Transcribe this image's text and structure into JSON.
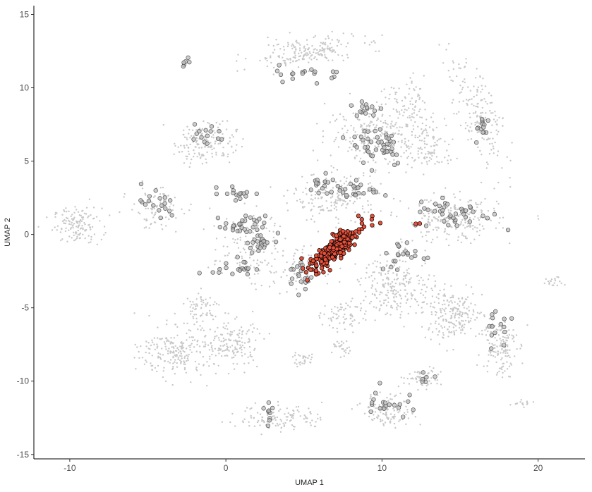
{
  "chart_data": {
    "type": "scatter",
    "title": "",
    "xlabel": "UMAP 1",
    "ylabel": "UMAP 2",
    "xlim": [
      -12.3,
      23.0
    ],
    "ylim": [
      -15.3,
      15.6
    ],
    "x_ticks": [
      -10,
      0,
      10,
      20
    ],
    "y_ticks": [
      -15,
      -10,
      -5,
      0,
      5,
      10,
      15
    ],
    "grid": false,
    "legend": "none",
    "colors": {
      "background_points": "#c8c8c8",
      "mid_points_fill": "#bdbdbd",
      "mid_points_stroke": "#555555",
      "highlight_fill": "#e8503a",
      "highlight_stroke": "#000000"
    },
    "clusters": [
      {
        "group": "background",
        "cx": -9.5,
        "cy": 0.6,
        "rx": 1.4,
        "ry": 1.1,
        "n": 140,
        "angle": 0
      },
      {
        "group": "background",
        "cx": -1.3,
        "cy": 6.3,
        "rx": 1.8,
        "ry": 1.3,
        "n": 170,
        "angle": 0
      },
      {
        "group": "background",
        "cx": 5.0,
        "cy": 12.4,
        "rx": 3.2,
        "ry": 0.9,
        "n": 200,
        "angle": 8
      },
      {
        "group": "background",
        "cx": 16.3,
        "cy": 8.0,
        "rx": 1.2,
        "ry": 3.5,
        "n": 170,
        "angle": 18
      },
      {
        "group": "background",
        "cx": 9.8,
        "cy": 6.8,
        "rx": 3.0,
        "ry": 1.8,
        "n": 260,
        "angle": 0
      },
      {
        "group": "background",
        "cx": 13.0,
        "cy": 6.0,
        "rx": 1.5,
        "ry": 1.5,
        "n": 100,
        "angle": 0
      },
      {
        "group": "background",
        "cx": 7.0,
        "cy": 2.5,
        "rx": 2.5,
        "ry": 1.5,
        "n": 180,
        "angle": 0
      },
      {
        "group": "background",
        "cx": 14.5,
        "cy": 1.0,
        "rx": 2.8,
        "ry": 1.4,
        "n": 240,
        "angle": 0
      },
      {
        "group": "background",
        "cx": 11.0,
        "cy": -3.5,
        "rx": 2.2,
        "ry": 1.8,
        "n": 230,
        "angle": 0
      },
      {
        "group": "background",
        "cx": 14.5,
        "cy": -5.5,
        "rx": 1.8,
        "ry": 1.5,
        "n": 210,
        "angle": 0
      },
      {
        "group": "background",
        "cx": 17.5,
        "cy": -7.5,
        "rx": 1.0,
        "ry": 2.0,
        "n": 140,
        "angle": 0
      },
      {
        "group": "background",
        "cx": -3.0,
        "cy": -8.0,
        "rx": 2.2,
        "ry": 1.5,
        "n": 230,
        "angle": 0
      },
      {
        "group": "background",
        "cx": 0.5,
        "cy": -7.5,
        "rx": 1.5,
        "ry": 1.5,
        "n": 140,
        "angle": 0
      },
      {
        "group": "background",
        "cx": -1.5,
        "cy": -5.0,
        "rx": 1.2,
        "ry": 1.0,
        "n": 70,
        "angle": 0
      },
      {
        "group": "background",
        "cx": -4.5,
        "cy": 1.8,
        "rx": 1.5,
        "ry": 1.3,
        "n": 90,
        "angle": 0
      },
      {
        "group": "background",
        "cx": 1.5,
        "cy": -1.0,
        "rx": 2.2,
        "ry": 2.2,
        "n": 130,
        "angle": 0
      },
      {
        "group": "background",
        "cx": 7.5,
        "cy": -5.5,
        "rx": 1.2,
        "ry": 1.0,
        "n": 70,
        "angle": 0
      },
      {
        "group": "background",
        "cx": 3.5,
        "cy": -12.5,
        "rx": 2.5,
        "ry": 0.8,
        "n": 120,
        "angle": 0
      },
      {
        "group": "background",
        "cx": 10.5,
        "cy": -12.0,
        "rx": 1.5,
        "ry": 1.0,
        "n": 120,
        "angle": 0
      },
      {
        "group": "background",
        "cx": 12.5,
        "cy": -9.8,
        "rx": 1.2,
        "ry": 0.6,
        "n": 60,
        "angle": 0
      },
      {
        "group": "background",
        "cx": 5.0,
        "cy": -8.5,
        "rx": 0.6,
        "ry": 0.5,
        "n": 30,
        "angle": 0
      },
      {
        "group": "background",
        "cx": 7.5,
        "cy": -7.8,
        "rx": 0.6,
        "ry": 0.5,
        "n": 25,
        "angle": 0
      },
      {
        "group": "background",
        "cx": 11.5,
        "cy": 9.0,
        "rx": 1.5,
        "ry": 1.5,
        "n": 70,
        "angle": 0
      },
      {
        "group": "background",
        "cx": 21.0,
        "cy": -3.2,
        "rx": 0.6,
        "ry": 0.4,
        "n": 20,
        "angle": 0
      },
      {
        "group": "background",
        "cx": 19.0,
        "cy": -11.6,
        "rx": 0.6,
        "ry": 0.3,
        "n": 15,
        "angle": 0
      },
      {
        "group": "background",
        "cx": 4.5,
        "cy": -2.5,
        "rx": 1.3,
        "ry": 1.5,
        "n": 60,
        "angle": 0
      },
      {
        "group": "mid",
        "cx": 1.2,
        "cy": 0.6,
        "rx": 1.2,
        "ry": 0.6,
        "n": 30,
        "angle": 0
      },
      {
        "group": "mid",
        "cx": 2.0,
        "cy": -0.8,
        "rx": 1.4,
        "ry": 0.6,
        "n": 25,
        "angle": 35
      },
      {
        "group": "mid",
        "cx": 1.0,
        "cy": 2.8,
        "rx": 1.2,
        "ry": 0.4,
        "n": 16,
        "angle": 0
      },
      {
        "group": "mid",
        "cx": 0.5,
        "cy": -2.3,
        "rx": 1.2,
        "ry": 0.4,
        "n": 18,
        "angle": 0
      },
      {
        "group": "mid",
        "cx": 4.8,
        "cy": -2.8,
        "rx": 0.7,
        "ry": 1.0,
        "n": 20,
        "angle": 0
      },
      {
        "group": "mid",
        "cx": 8.0,
        "cy": 3.0,
        "rx": 1.5,
        "ry": 0.6,
        "n": 25,
        "angle": 0
      },
      {
        "group": "mid",
        "cx": 9.8,
        "cy": 6.2,
        "rx": 1.6,
        "ry": 1.4,
        "n": 45,
        "angle": 0
      },
      {
        "group": "mid",
        "cx": 9.0,
        "cy": 8.5,
        "rx": 1.0,
        "ry": 0.6,
        "n": 15,
        "angle": 0
      },
      {
        "group": "mid",
        "cx": 5.5,
        "cy": 11.0,
        "rx": 2.0,
        "ry": 0.5,
        "n": 18,
        "angle": 0
      },
      {
        "group": "mid",
        "cx": 16.5,
        "cy": 7.2,
        "rx": 0.5,
        "ry": 0.8,
        "n": 14,
        "angle": 0
      },
      {
        "group": "mid",
        "cx": 14.5,
        "cy": 1.5,
        "rx": 2.3,
        "ry": 1.0,
        "n": 40,
        "angle": 0
      },
      {
        "group": "mid",
        "cx": 11.5,
        "cy": -1.5,
        "rx": 1.5,
        "ry": 1.0,
        "n": 22,
        "angle": 0
      },
      {
        "group": "mid",
        "cx": 17.5,
        "cy": -6.0,
        "rx": 0.9,
        "ry": 1.5,
        "n": 15,
        "angle": 0
      },
      {
        "group": "mid",
        "cx": 10.2,
        "cy": -11.5,
        "rx": 1.2,
        "ry": 1.0,
        "n": 20,
        "angle": 0
      },
      {
        "group": "mid",
        "cx": 2.8,
        "cy": -12.0,
        "rx": 0.3,
        "ry": 0.7,
        "n": 10,
        "angle": 0
      },
      {
        "group": "mid",
        "cx": -2.6,
        "cy": 11.8,
        "rx": 0.3,
        "ry": 0.3,
        "n": 6,
        "angle": 0
      },
      {
        "group": "mid",
        "cx": -1.3,
        "cy": 6.8,
        "rx": 1.2,
        "ry": 0.7,
        "n": 14,
        "angle": 0
      },
      {
        "group": "mid",
        "cx": -4.5,
        "cy": 2.0,
        "rx": 1.2,
        "ry": 1.2,
        "n": 18,
        "angle": 0
      },
      {
        "group": "mid",
        "cx": 6.0,
        "cy": 3.5,
        "rx": 1.2,
        "ry": 0.8,
        "n": 15,
        "angle": 0
      },
      {
        "group": "mid",
        "cx": 12.7,
        "cy": -9.7,
        "rx": 0.6,
        "ry": 0.4,
        "n": 6,
        "angle": 0
      },
      {
        "group": "highlight",
        "cx": 6.8,
        "cy": -1.2,
        "rx": 1.6,
        "ry": 0.5,
        "n": 220,
        "angle": 42
      },
      {
        "group": "highlight",
        "cx": 7.5,
        "cy": 0.0,
        "rx": 0.6,
        "ry": 0.5,
        "n": 30,
        "angle": 0
      },
      {
        "group": "highlight",
        "cx": 8.8,
        "cy": 1.0,
        "rx": 0.6,
        "ry": 0.4,
        "n": 8,
        "angle": 0
      },
      {
        "group": "highlight",
        "cx": 12.2,
        "cy": 0.8,
        "rx": 0.2,
        "ry": 0.3,
        "n": 2,
        "angle": 0
      }
    ]
  }
}
